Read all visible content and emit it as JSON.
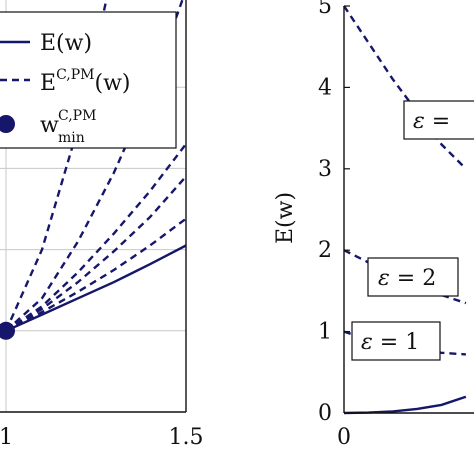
{
  "chart_data": [
    {
      "type": "line",
      "xlim": [
        1,
        1.5
      ],
      "ylim": [
        0,
        5
      ],
      "x_ticks": [
        "1",
        "1.5"
      ],
      "grid": true,
      "legend": {
        "placement": "top-left",
        "entries": [
          {
            "label": "E(w)",
            "style": "solid"
          },
          {
            "label": "E",
            "sup": "C,PM",
            "suffix": "(w)",
            "style": "dashed"
          },
          {
            "label": "w",
            "sup": "C,PM",
            "sub": "min",
            "style": "marker"
          }
        ]
      },
      "series": [
        {
          "name": "E(w)",
          "style": "solid",
          "x": [
            1.0,
            1.1,
            1.2,
            1.3,
            1.4,
            1.5
          ],
          "y": [
            1.0,
            1.2,
            1.4,
            1.6,
            1.82,
            2.05
          ]
        },
        {
          "style": "dashed",
          "x": [
            1.0,
            1.1,
            1.2,
            1.3,
            1.4,
            1.5
          ],
          "y": [
            1.0,
            1.23,
            1.48,
            1.75,
            2.05,
            2.38
          ]
        },
        {
          "style": "dashed",
          "x": [
            1.0,
            1.1,
            1.2,
            1.3,
            1.4,
            1.5
          ],
          "y": [
            1.0,
            1.27,
            1.6,
            1.98,
            2.4,
            2.9
          ]
        },
        {
          "style": "dashed",
          "x": [
            1.0,
            1.1,
            1.2,
            1.3,
            1.4,
            1.5
          ],
          "y": [
            1.0,
            1.3,
            1.72,
            2.2,
            2.72,
            3.3
          ]
        },
        {
          "style": "dashed",
          "x": [
            1.0,
            1.1,
            1.2,
            1.3,
            1.4,
            1.5
          ],
          "y": [
            1.0,
            1.4,
            2.1,
            2.95,
            3.95,
            5.2
          ]
        },
        {
          "style": "dashed",
          "x": [
            1.0,
            1.1,
            1.2,
            1.3
          ],
          "y": [
            1.0,
            2.0,
            3.5,
            5.5
          ]
        }
      ],
      "points": [
        {
          "name": "w_min",
          "x": 1.0,
          "y": 1.0
        }
      ]
    },
    {
      "type": "line",
      "xlim": [
        0,
        1.6
      ],
      "ylim": [
        0,
        5
      ],
      "x_ticks": [
        "0"
      ],
      "y_ticks": [
        "0",
        "1",
        "2",
        "3",
        "4",
        "5"
      ],
      "ylabel": "E(w)",
      "grid": false,
      "series": [
        {
          "name": "E(w)",
          "style": "solid",
          "x": [
            0,
            0.3,
            0.6,
            0.9,
            1.2,
            1.5
          ],
          "y": [
            0.0,
            0.005,
            0.02,
            0.05,
            0.1,
            0.2
          ]
        },
        {
          "style": "dashed",
          "x": [
            0,
            0.3,
            0.6,
            0.9,
            1.2,
            1.5
          ],
          "y": [
            5.0,
            4.55,
            4.1,
            3.7,
            3.3,
            3.0
          ]
        },
        {
          "style": "dashed",
          "x": [
            0,
            0.3,
            0.6,
            0.9,
            1.2,
            1.5
          ],
          "y": [
            2.0,
            1.85,
            1.72,
            1.6,
            1.45,
            1.35
          ]
        },
        {
          "style": "dashed",
          "x": [
            0,
            0.3,
            0.6,
            0.9,
            1.2,
            1.5
          ],
          "y": [
            1.0,
            0.9,
            0.82,
            0.78,
            0.74,
            0.72
          ]
        }
      ],
      "annotations": [
        {
          "symbol": "ε",
          "text": " = ",
          "value": ""
        },
        {
          "symbol": "ε",
          "text": " = ",
          "value": "2"
        },
        {
          "symbol": "ε",
          "text": " = ",
          "value": "1"
        }
      ]
    }
  ]
}
